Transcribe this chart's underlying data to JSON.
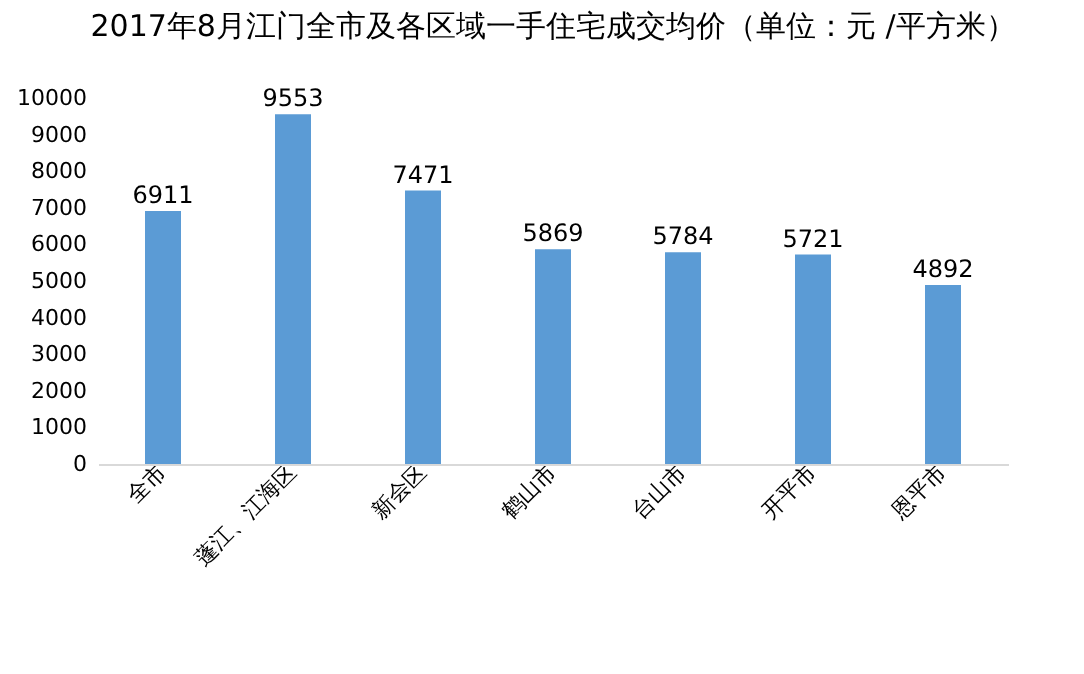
{
  "chart_data": {
    "type": "bar",
    "title": "2017年8月江门全市及各区域一手住宅成交均价（单位：元 /平方米）",
    "categories": [
      "全市",
      "蓬江、江海区",
      "新会区",
      "鹤山市",
      "台山市",
      "开平市",
      "恩平市"
    ],
    "values": [
      6911,
      9553,
      7471,
      5869,
      5784,
      5721,
      4892
    ],
    "color": "#5b9bd5",
    "data_labels": true,
    "grid": false,
    "ylim": [
      0,
      10000
    ],
    "yticks": [
      0,
      1000,
      2000,
      3000,
      4000,
      5000,
      6000,
      7000,
      8000,
      9000,
      10000
    ]
  }
}
